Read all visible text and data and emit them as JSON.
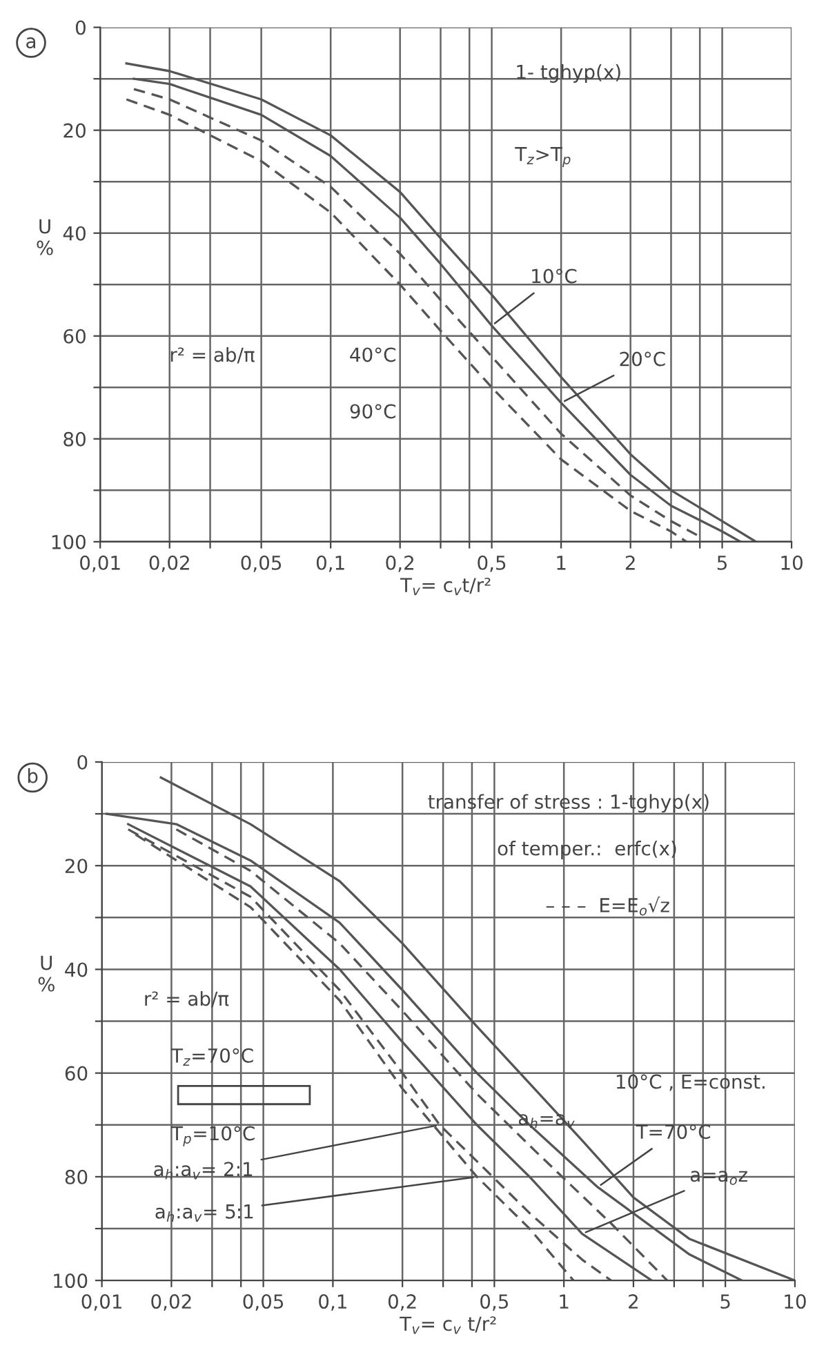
{
  "chart_data": [
    {
      "type": "line",
      "title": "a",
      "xlabel": "T$_{v}$= c$_{v}$t/r²",
      "ylabel": "U\n%",
      "log": "x",
      "grid": true,
      "marker": "none",
      "xlim": [
        0.01,
        10
      ],
      "ylim": [
        100,
        0
      ],
      "xticks": [
        {
          "value": 0.01,
          "label": "0,01"
        },
        {
          "value": 0.02,
          "label": "0,02"
        },
        {
          "value": 0.03,
          "label": null
        },
        {
          "value": 0.05,
          "label": "0,05"
        },
        {
          "value": 0.1,
          "label": "0,1"
        },
        {
          "value": 0.2,
          "label": "0,2"
        },
        {
          "value": 0.3,
          "label": null
        },
        {
          "value": 0.4,
          "label": null
        },
        {
          "value": 0.5,
          "label": "0,5"
        },
        1,
        2,
        {
          "value": 3,
          "label": null
        },
        {
          "value": 4,
          "label": null
        },
        5,
        10
      ],
      "yticks": [
        0,
        {
          "value": 10,
          "label": null
        },
        20,
        {
          "value": 30,
          "label": null
        },
        40,
        {
          "value": 50,
          "label": null
        },
        60,
        {
          "value": 70,
          "label": null
        },
        80,
        {
          "value": 90,
          "label": null
        },
        100
      ],
      "series": [
        {
          "color": "#555555",
          "line_style": "solid",
          "x": [
            0.013,
            0.02,
            0.05,
            0.1,
            0.2,
            0.3,
            0.5,
            1,
            2,
            3,
            5,
            7
          ],
          "values": [
            7,
            8.5,
            14,
            21,
            32,
            41,
            52,
            68,
            83,
            90,
            96,
            100
          ]
        },
        {
          "color": "#555555",
          "line_style": "solid",
          "x": [
            0.014,
            0.02,
            0.05,
            0.1,
            0.2,
            0.3,
            0.5,
            1,
            2,
            3,
            5,
            6
          ],
          "values": [
            10,
            11,
            17,
            25,
            37,
            46,
            58,
            73,
            87,
            93,
            98,
            100
          ]
        },
        {
          "color": "#555555",
          "line_style": "dashed",
          "x": [
            0.014,
            0.02,
            0.05,
            0.1,
            0.2,
            0.3,
            0.5,
            1,
            2,
            3,
            4
          ],
          "values": [
            12,
            14,
            22,
            31,
            44,
            53,
            64,
            79,
            91,
            96,
            99
          ]
        },
        {
          "color": "#555555",
          "line_style": "dashed",
          "x": [
            0.013,
            0.02,
            0.05,
            0.1,
            0.2,
            0.3,
            0.5,
            1,
            2,
            3,
            3.5
          ],
          "values": [
            14,
            17,
            26,
            36,
            50,
            59,
            70,
            84,
            94,
            98,
            100
          ]
        }
      ],
      "annotations": [
        "1- tghyp(x)",
        "T$_{z}$>T$_{p}$",
        "r² = ab/π",
        {
          "text": "10°C",
          "x": 0.5,
          "y": 58
        },
        {
          "text": "20°C",
          "x": 1.0,
          "y": 73
        },
        "40°C",
        "90°C"
      ]
    },
    {
      "type": "line",
      "title": "b",
      "xlabel": "T$_{v}$= c$_{v}$ t/r²",
      "ylabel": "U\n%",
      "log": "x",
      "grid": true,
      "marker": "none",
      "xlim": [
        0.01,
        10
      ],
      "ylim": [
        100,
        0
      ],
      "xticks": [
        {
          "value": 0.01,
          "label": "0,01"
        },
        {
          "value": 0.02,
          "label": "0,02"
        },
        {
          "value": 0.03,
          "label": null
        },
        {
          "value": 0.04,
          "label": null
        },
        {
          "value": 0.05,
          "label": "0,05"
        },
        {
          "value": 0.1,
          "label": "0,1"
        },
        {
          "value": 0.2,
          "label": "0,2"
        },
        {
          "value": 0.3,
          "label": null
        },
        {
          "value": 0.4,
          "label": null
        },
        {
          "value": 0.5,
          "label": "0,5"
        },
        1,
        2,
        {
          "value": 3,
          "label": null
        },
        {
          "value": 4,
          "label": null
        },
        5,
        10
      ],
      "yticks": [
        0,
        {
          "value": 10,
          "label": null
        },
        20,
        {
          "value": 30,
          "label": null
        },
        40,
        {
          "value": 50,
          "label": null
        },
        60,
        {
          "value": 70,
          "label": null
        },
        80,
        {
          "value": 90,
          "label": null
        },
        100
      ],
      "series": [
        {
          "color": "#555555",
          "line_style": "solid",
          "x": [
            0.018,
            0.044,
            0.107,
            0.2,
            0.42,
            0.71,
            1.2,
            2.0,
            3.5,
            10
          ],
          "values": [
            3,
            12,
            23,
            35,
            51,
            62,
            73,
            84,
            92,
            100
          ]
        },
        {
          "color": "#555555",
          "line_style": "solid",
          "x": [
            0.0105,
            0.021,
            0.044,
            0.107,
            0.2,
            0.42,
            0.71,
            1.4,
            3.5,
            5.9
          ],
          "values": [
            10,
            12,
            19,
            31,
            44,
            60,
            70,
            82,
            95,
            100
          ]
        },
        {
          "color": "#555555",
          "line_style": "dashed",
          "x": [
            0.021,
            0.044,
            0.107,
            0.2,
            0.42,
            0.75,
            1.6,
            2.8
          ],
          "values": [
            13,
            21,
            35,
            48,
            64,
            75,
            89,
            100
          ]
        },
        {
          "color": "#555555",
          "line_style": "solid",
          "x": [
            0.013,
            0.044,
            0.107,
            0.2,
            0.42,
            0.71,
            1.2,
            2.4
          ],
          "values": [
            12,
            24,
            40,
            54,
            70,
            80,
            91,
            100
          ]
        },
        {
          "color": "#555555",
          "line_style": "dashed",
          "x": [
            0.013,
            0.044,
            0.107,
            0.2,
            0.29,
            0.42,
            0.71,
            1.2,
            1.6
          ],
          "values": [
            13,
            26,
            44,
            60,
            70,
            77,
            87,
            96,
            100
          ]
        },
        {
          "color": "#555555",
          "line_style": "dashed",
          "x": [
            0.014,
            0.044,
            0.107,
            0.2,
            0.42,
            0.71,
            1.1
          ],
          "values": [
            14,
            28,
            46,
            63,
            80,
            90,
            100
          ]
        }
      ],
      "annotations": [
        "transfer of stress : 1-tghyp(x)",
        "of temper.:  erfc(x)",
        "– – –  E=E$_{o}$√z",
        "r² = ab/π",
        "T$_{z}$=70°C",
        "T$_{p}$=10°C",
        "10°C , E=const.",
        {
          "text": "T=70°C",
          "x": 1.4,
          "y": 82
        },
        {
          "text": "a=a$_{o}$z",
          "x": 1.2,
          "y": 91
        },
        {
          "text": "a$_{h}$:a$_{v}$= 2:1",
          "x": 0.29,
          "y": 70
        },
        {
          "text": "a$_{h}$:a$_{v}$= 5:1",
          "x": 0.42,
          "y": 80
        },
        "a$_{h}$=a$_{v}$"
      ]
    }
  ]
}
